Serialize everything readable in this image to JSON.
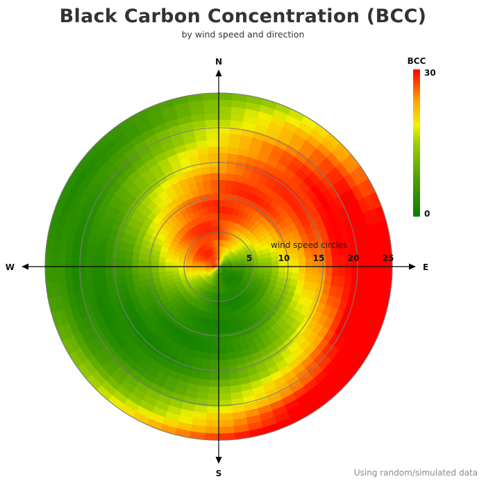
{
  "page": {
    "title": "Black Carbon Concentration (BCC)",
    "subtitle": "by wind speed and direction",
    "footnote": "Using random/simulated data"
  },
  "chart_data": {
    "type": "heatmap",
    "projection": "polar",
    "title": "Black Carbon Concentration (BCC)",
    "subtitle": "by wind speed and direction",
    "radial_axis": {
      "label": "wind speed circles",
      "ticks": [
        5,
        10,
        15,
        20,
        25
      ],
      "range": [
        0,
        25
      ]
    },
    "direction_labels": [
      "N",
      "E",
      "S",
      "W"
    ],
    "colorbar": {
      "title": "BCC",
      "min": 0,
      "max": 30,
      "tick_labels": [
        "30",
        "0"
      ],
      "colors": [
        "#0b7d00",
        "#f2f200",
        "#ff0000"
      ]
    },
    "grid": true,
    "note": "Using random/simulated data"
  }
}
